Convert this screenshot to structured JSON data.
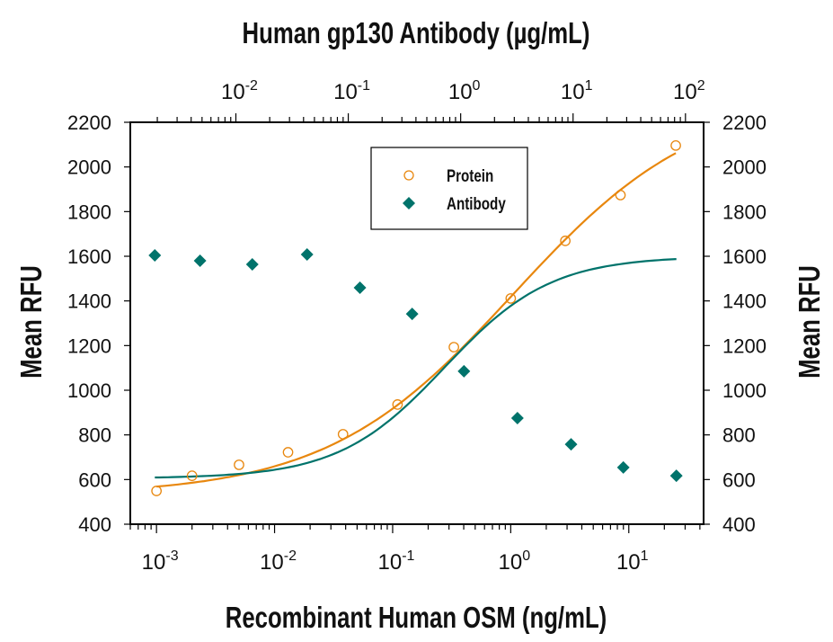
{
  "chart_data": {
    "type": "scatter",
    "title": "Human gp130 Antibody (µg/mL)",
    "top_xlabel": "Human gp130 Antibody (µg/mL)",
    "xlabel": "Recombinant Human OSM (ng/mL)",
    "ylabel": "Mean RFU",
    "ylabel_right": "Mean RFU",
    "x_scale": "log",
    "xlim": [
      0.0006,
      43
    ],
    "top_xlim": [
      0.00115,
      145
    ],
    "ylim": [
      400,
      2200
    ],
    "y_ticks": [
      400,
      600,
      800,
      1000,
      1200,
      1400,
      1600,
      1800,
      2000,
      2200
    ],
    "x_ticks": [
      {
        "base": "10",
        "exp": "-3",
        "value": 0.001
      },
      {
        "base": "10",
        "exp": "-2",
        "value": 0.01
      },
      {
        "base": "10",
        "exp": "-1",
        "value": 0.1
      },
      {
        "base": "10",
        "exp": "0",
        "value": 1
      },
      {
        "base": "10",
        "exp": "1",
        "value": 10
      }
    ],
    "top_x_ticks": [
      {
        "base": "10",
        "exp": "-2",
        "value": 0.01
      },
      {
        "base": "10",
        "exp": "-1",
        "value": 0.1
      },
      {
        "base": "10",
        "exp": "0",
        "value": 1
      },
      {
        "base": "10",
        "exp": "1",
        "value": 10
      },
      {
        "base": "10",
        "exp": "2",
        "value": 100
      }
    ],
    "grid": false,
    "legend": {
      "placement": "top-center",
      "entries": [
        {
          "label": "Protein",
          "marker": "open-circle"
        },
        {
          "label": "Antibody",
          "marker": "filled-diamond"
        }
      ]
    },
    "series": [
      {
        "name": "Protein",
        "axis": "bottom",
        "color": "#e8870e",
        "marker": "open-circle",
        "x": [
          0.001,
          0.002,
          0.005,
          0.013,
          0.038,
          0.11,
          0.33,
          1.0,
          2.9,
          8.5,
          25
        ],
        "y": [
          549,
          617,
          666,
          722,
          803,
          936,
          1193,
          1411,
          1669,
          1874,
          2096
        ],
        "fit": {
          "bottom": 530,
          "top": 2330,
          "ec50": 1.05,
          "hill": 0.55
        }
      },
      {
        "name": "Antibody",
        "axis": "top",
        "color": "#00736b",
        "marker": "filled-diamond",
        "x": [
          0.0019,
          0.0048,
          0.014,
          0.043,
          0.127,
          0.37,
          1.07,
          3.2,
          9.6,
          28,
          83
        ],
        "y": [
          1604,
          1580,
          1564,
          1608,
          1459,
          1342,
          1085,
          875,
          758,
          654,
          617
        ],
        "fit": {
          "bottom": 605,
          "top": 1600,
          "ec50": 0.72,
          "hill": 0.92
        }
      }
    ]
  }
}
